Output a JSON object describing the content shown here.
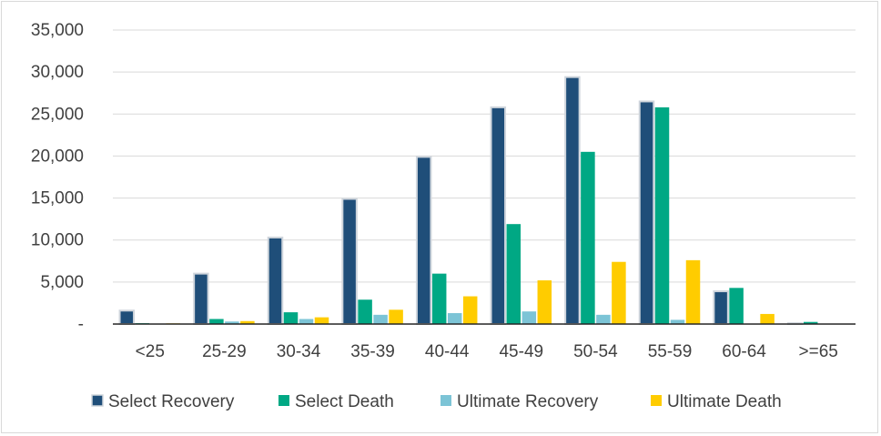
{
  "chart_data": {
    "type": "bar",
    "title": "",
    "xlabel": "",
    "ylabel": "",
    "categories": [
      "<25",
      "25-29",
      "30-34",
      "35-39",
      "40-44",
      "45-49",
      "50-54",
      "55-59",
      "60-64",
      ">=65"
    ],
    "ylim": [
      0,
      35000
    ],
    "yticks": [
      0,
      5000,
      10000,
      15000,
      20000,
      25000,
      30000,
      35000
    ],
    "ytick_labels": [
      "-",
      "5,000",
      "10,000",
      "15,000",
      "20,000",
      "25,000",
      "30,000",
      "35,000"
    ],
    "grid": true,
    "legend_position": "bottom",
    "series": [
      {
        "name": "Select Recovery",
        "color": "#1f4e79",
        "values": [
          1600,
          6000,
          10300,
          14900,
          19900,
          25800,
          29400,
          26500,
          3900,
          100
        ]
      },
      {
        "name": "Select Death",
        "color": "#00a884",
        "values": [
          100,
          600,
          1400,
          2900,
          6000,
          11900,
          20500,
          25800,
          4300,
          250
        ]
      },
      {
        "name": "Ultimate Recovery",
        "color": "#7cc4d6",
        "values": [
          50,
          300,
          600,
          1100,
          1300,
          1500,
          1100,
          500,
          50,
          0
        ]
      },
      {
        "name": "Ultimate Death",
        "color": "#ffcc00",
        "values": [
          80,
          350,
          800,
          1700,
          3300,
          5200,
          7400,
          7600,
          1200,
          10
        ]
      }
    ]
  }
}
